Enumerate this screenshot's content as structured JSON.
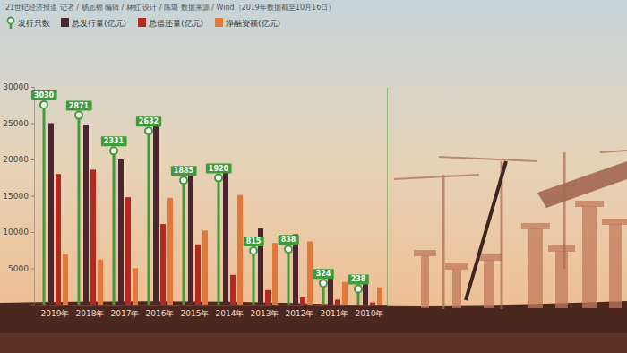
{
  "chart_data": {
    "type": "bar",
    "title": "21世纪经济报道  记者 / 杨志锦  编辑 / 林虹  设计 / 陈璐  数据来源 / Wind（2019年数据截至10月16日）",
    "categories": [
      "2019年",
      "2018年",
      "2017年",
      "2016年",
      "2015年",
      "2014年",
      "2013年",
      "2012年",
      "2011年",
      "2010年"
    ],
    "series": [
      {
        "name": "发行只数",
        "type": "lollipop",
        "axis": "y2",
        "color": "#3f9b3c",
        "data_labels": true,
        "values": [
          3030,
          2871,
          2331,
          2632,
          1885,
          1920,
          815,
          838,
          324,
          238
        ]
      },
      {
        "name": "总发行量(亿元)",
        "type": "bar",
        "color": "#4b2530",
        "values": [
          25000,
          24800,
          20000,
          25700,
          18400,
          19200,
          10500,
          9700,
          4100,
          3100
        ]
      },
      {
        "name": "总偿还量(亿元)",
        "type": "bar",
        "color": "#b3281f",
        "values": [
          18000,
          18600,
          14800,
          11100,
          8300,
          4100,
          2000,
          1000,
          700,
          300
        ]
      },
      {
        "name": "净融资额(亿元)",
        "type": "bar",
        "color": "#e2793b",
        "values": [
          6900,
          6200,
          5000,
          14700,
          10200,
          15100,
          8500,
          8700,
          3100,
          2400
        ]
      }
    ],
    "ylim": [
      0,
      30000
    ],
    "yticks": [
      5000,
      10000,
      15000,
      20000,
      25000,
      30000
    ],
    "y2lim": [
      0,
      3300
    ],
    "y2ticks": [],
    "legend": "top-left",
    "grid": false
  }
}
